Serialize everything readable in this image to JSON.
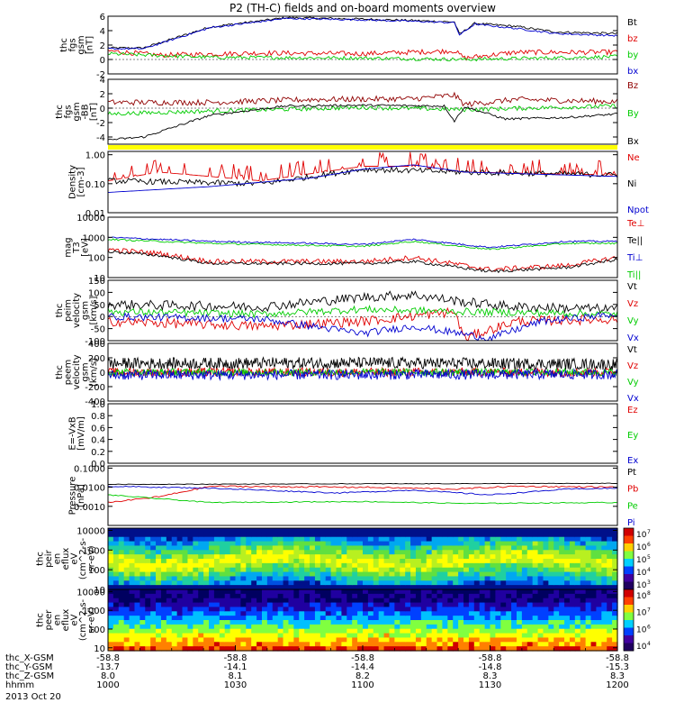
{
  "title": "P2 (TH-C) fields and on-board moments overview",
  "date_label": "2013 Oct 20",
  "colors": {
    "black": "#000000",
    "red": "#e00000",
    "green": "#00cc00",
    "blue": "#0000d0",
    "darkred": "#900000",
    "yellow": "#ffff00"
  },
  "chart_data": [
    {
      "type": "line",
      "ylabel_lines": [
        "thc",
        "fgs",
        "gsm",
        "[nT]"
      ],
      "ylim": [
        -2,
        6
      ],
      "yticks": [
        -2,
        0,
        2,
        4,
        6
      ],
      "tick_labels": [
        "-2",
        "0",
        "2",
        "4",
        "6"
      ],
      "series": [
        {
          "name": "Bt",
          "color": "#000000"
        },
        {
          "name": "bz",
          "color": "#e00000"
        },
        {
          "name": "by",
          "color": "#00cc00"
        },
        {
          "name": "bx",
          "color": "#0000d0"
        }
      ]
    },
    {
      "type": "line",
      "ylabel_lines": [
        "thc",
        "fgs",
        "gsm",
        "-BB",
        "[nT]"
      ],
      "ylim": [
        -5,
        4
      ],
      "yticks": [
        -4,
        -2,
        0,
        2,
        4
      ],
      "tick_labels": [
        "-4",
        "-2",
        "0",
        "2",
        "4"
      ],
      "series": [
        {
          "name": "Bz",
          "color": "#900000"
        },
        {
          "name": "By",
          "color": "#00cc00"
        },
        {
          "name": "Bx",
          "color": "#000000"
        }
      ]
    },
    {
      "type": "line",
      "ylabel_lines": [
        "Density",
        "[cm-3]"
      ],
      "scale": "log",
      "ylim": [
        0.01,
        1.3
      ],
      "yticks": [
        1.0,
        0.1,
        0.01
      ],
      "tick_labels": [
        "1.00",
        "0.10",
        "0.01"
      ],
      "series": [
        {
          "name": "Ne",
          "color": "#e00000"
        },
        {
          "name": "Ni",
          "color": "#000000"
        },
        {
          "name": "Npot",
          "color": "#0000d0"
        }
      ]
    },
    {
      "type": "line",
      "ylabel_lines": [
        "mag",
        "T3",
        "[eV]"
      ],
      "scale": "log",
      "ylim": [
        10,
        10000
      ],
      "yticks": [
        10000,
        1000,
        100,
        10
      ],
      "tick_labels": [
        "10000",
        "1000",
        "100",
        "10"
      ],
      "series": [
        {
          "name": "Te⊥",
          "color": "#e00000"
        },
        {
          "name": "Te||",
          "color": "#000000"
        },
        {
          "name": "Ti⊥",
          "color": "#0000d0"
        },
        {
          "name": "Ti||",
          "color": "#00cc00"
        }
      ]
    },
    {
      "type": "line",
      "ylabel_lines": [
        "thc",
        "peim",
        "velocity",
        "gsm",
        "[km/s]"
      ],
      "ylim": [
        -100,
        150
      ],
      "yticks": [
        150,
        100,
        50,
        0,
        -50,
        -100
      ],
      "tick_labels": [
        "150",
        "100",
        "50",
        "0",
        "-50",
        "-100"
      ],
      "series": [
        {
          "name": "Vt",
          "color": "#000000"
        },
        {
          "name": "Vz",
          "color": "#e00000"
        },
        {
          "name": "Vy",
          "color": "#00cc00"
        },
        {
          "name": "Vx",
          "color": "#0000d0"
        }
      ]
    },
    {
      "type": "line",
      "ylabel_lines": [
        "thc",
        "peem",
        "velocity",
        "gsm",
        "[km/s]"
      ],
      "ylim": [
        -400,
        400
      ],
      "yticks": [
        400,
        200,
        0,
        -200,
        -400
      ],
      "tick_labels": [
        "400",
        "200",
        "0",
        "-200",
        "-400"
      ],
      "series": [
        {
          "name": "Vt",
          "color": "#000000"
        },
        {
          "name": "Vz",
          "color": "#e00000"
        },
        {
          "name": "Vy",
          "color": "#00cc00"
        },
        {
          "name": "Vx",
          "color": "#0000d0"
        }
      ]
    },
    {
      "type": "line",
      "ylabel_lines": [
        "E=-VxB",
        "[mV/m]"
      ],
      "ylim": [
        0.0,
        1.0
      ],
      "yticks": [
        1.0,
        0.8,
        0.6,
        0.4,
        0.2,
        0.0
      ],
      "tick_labels": [
        "1.0",
        "0.8",
        "0.6",
        "0.4",
        "0.2",
        "0.0"
      ],
      "series": [
        {
          "name": "Ez",
          "color": "#e00000"
        },
        {
          "name": "Ey",
          "color": "#00cc00"
        },
        {
          "name": "Ex",
          "color": "#0000d0"
        }
      ]
    },
    {
      "type": "line",
      "ylabel_lines": [
        "Pressure",
        "[nPa]"
      ],
      "scale": "log",
      "ylim": [
        0.0001,
        0.13
      ],
      "yticks": [
        0.1,
        0.01,
        0.001
      ],
      "tick_labels": [
        "0.1000",
        "0.0100",
        "0.0010"
      ],
      "series": [
        {
          "name": "Pt",
          "color": "#000000"
        },
        {
          "name": "Pb",
          "color": "#e00000"
        },
        {
          "name": "Pe",
          "color": "#00cc00"
        },
        {
          "name": "Pi",
          "color": "#0000d0"
        }
      ]
    },
    {
      "type": "heatmap",
      "ylabel_lines": [
        "thc",
        "peir",
        "en",
        "eflux",
        "eV",
        "(cm^2-s-",
        "sr-eV)"
      ],
      "scale": "log",
      "ylim": [
        10,
        13000
      ],
      "yticks": [
        10000,
        1000,
        100,
        10
      ],
      "tick_labels": [
        "10000",
        "1000",
        "100",
        "10"
      ],
      "colorbar_ticks": [
        "10",
        "10",
        "10",
        "10",
        "10"
      ],
      "colorbar_exponents": [
        "7",
        "6",
        "5",
        "4",
        "3"
      ]
    },
    {
      "type": "heatmap",
      "ylabel_lines": [
        "thc",
        "peer",
        "en",
        "eflux",
        "eV",
        "(cm^2-s-",
        "sr-eV)"
      ],
      "scale": "log",
      "ylim": [
        7,
        13000
      ],
      "yticks": [
        10000,
        1000,
        100,
        10
      ],
      "tick_labels": [
        "10000",
        "1000",
        "100",
        "10"
      ],
      "colorbar_ticks": [
        "10",
        "10",
        "10",
        "10"
      ],
      "colorbar_exponents": [
        "8",
        "7",
        "6",
        "4"
      ]
    }
  ],
  "x_axis": {
    "rows": [
      {
        "label": "thc_X-GSM",
        "values": [
          "-58.8",
          "-58.8",
          "-58.8",
          "-58.8",
          "-58.8"
        ]
      },
      {
        "label": "thc_Y-GSM",
        "values": [
          "-13.7",
          "-14.1",
          "-14.4",
          "-14.8",
          "-15.3"
        ]
      },
      {
        "label": "thc_Z-GSM",
        "values": [
          "8.0",
          "8.1",
          "8.2",
          "8.3",
          "8.3"
        ]
      },
      {
        "label": "hhmm",
        "values": [
          "1000",
          "1030",
          "1100",
          "1130",
          "1200"
        ]
      }
    ]
  }
}
